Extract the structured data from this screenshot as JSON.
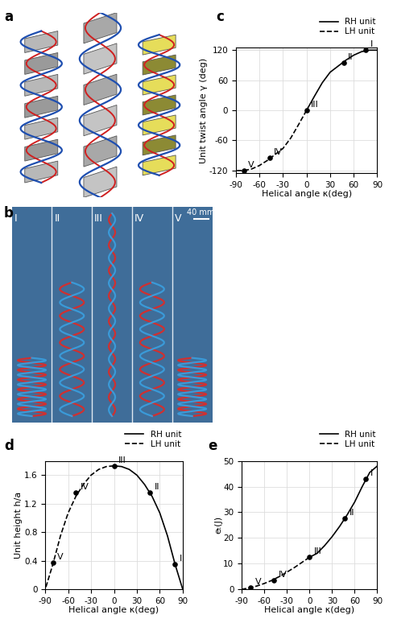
{
  "panel_labels": [
    "a",
    "b",
    "c",
    "d",
    "e"
  ],
  "photo_panel": {
    "labels": [
      "I",
      "II",
      "III",
      "IV",
      "V"
    ],
    "scale_bar": "40 mm"
  },
  "chart_data": [
    {
      "type": "line",
      "xlabel": "Helical angle κ(deg)",
      "ylabel": "Unit twist angle γ (deg)",
      "xlim": [
        -90,
        90
      ],
      "xticks": [
        -90,
        -60,
        -30,
        0,
        30,
        60,
        90
      ],
      "ylim": [
        -125,
        125
      ],
      "yticks": [
        -120,
        -60,
        0,
        60,
        120
      ],
      "grid": true,
      "legend": "upper right",
      "series": [
        {
          "name": "RH unit",
          "color": "#000000",
          "line_style": "solid",
          "x": [
            0,
            10,
            20,
            30,
            40,
            50,
            60,
            70,
            80,
            90
          ],
          "values": [
            0,
            28,
            55,
            76,
            88,
            100,
            110,
            117,
            120,
            120
          ]
        },
        {
          "name": "LH unit",
          "color": "#000000",
          "line_style": "dashed",
          "x": [
            0,
            -10,
            -20,
            -30,
            -40,
            -50,
            -60,
            -70,
            -80,
            -90
          ],
          "values": [
            0,
            -28,
            -55,
            -76,
            -88,
            -100,
            -110,
            -117,
            -120,
            -120
          ]
        }
      ],
      "points": {
        "labels": [
          "I",
          "II",
          "III",
          "IV",
          "V"
        ],
        "x": [
          75,
          47,
          0,
          -47,
          -80
        ],
        "values": [
          120,
          95,
          0,
          -95,
          -120
        ]
      }
    },
    {
      "type": "line",
      "xlabel": "Helical angle κ(deg)",
      "ylabel": "Unit height h/a",
      "xlim": [
        -90,
        90
      ],
      "xticks": [
        -90,
        -60,
        -30,
        0,
        30,
        60,
        90
      ],
      "ylim": [
        0,
        1.8
      ],
      "yticks": [
        0,
        0.4,
        0.8,
        1.2,
        1.6
      ],
      "grid": true,
      "legend": "upper right",
      "series": [
        {
          "name": "RH unit",
          "color": "#000000",
          "line_style": "solid",
          "x": [
            0,
            10,
            20,
            30,
            40,
            50,
            60,
            70,
            80,
            90
          ],
          "values": [
            1.73,
            1.72,
            1.68,
            1.6,
            1.47,
            1.3,
            1.07,
            0.75,
            0.35,
            0.0
          ]
        },
        {
          "name": "LH unit",
          "color": "#000000",
          "line_style": "dashed",
          "x": [
            0,
            -10,
            -20,
            -30,
            -40,
            -50,
            -60,
            -70,
            -80,
            -90
          ],
          "values": [
            1.73,
            1.72,
            1.68,
            1.6,
            1.47,
            1.3,
            1.07,
            0.75,
            0.35,
            0.0
          ]
        }
      ],
      "points": {
        "labels": [
          "I",
          "II",
          "III",
          "IV",
          "V"
        ],
        "x": [
          80,
          47,
          0,
          -50,
          -80
        ],
        "values": [
          0.35,
          1.35,
          1.73,
          1.35,
          0.37
        ]
      }
    },
    {
      "type": "line",
      "xlabel": "Helical angle κ(deg)",
      "ylabel": "eₜ(J)",
      "xlim": [
        -90,
        90
      ],
      "xticks": [
        -90,
        -60,
        -30,
        0,
        30,
        60,
        90
      ],
      "ylim": [
        0,
        50
      ],
      "yticks": [
        0,
        10,
        20,
        30,
        40,
        50
      ],
      "grid": true,
      "legend": "upper right",
      "series": [
        {
          "name": "RH unit",
          "color": "#000000",
          "line_style": "solid",
          "x": [
            0,
            10,
            20,
            30,
            40,
            50,
            60,
            70,
            80,
            90
          ],
          "values": [
            12.5,
            14,
            17,
            20.5,
            24.5,
            29,
            34,
            40,
            45.5,
            48
          ]
        },
        {
          "name": "LH unit",
          "color": "#000000",
          "line_style": "dashed",
          "x": [
            0,
            -10,
            -20,
            -30,
            -40,
            -50,
            -60,
            -70,
            -80,
            -90
          ],
          "values": [
            12.5,
            10.5,
            8.5,
            6.7,
            5,
            3.5,
            2.3,
            1.3,
            0.6,
            0
          ]
        }
      ],
      "points": {
        "labels": [
          "I",
          "II",
          "III",
          "IV",
          "V"
        ],
        "x": [
          75,
          47,
          0,
          -47,
          -78
        ],
        "values": [
          43,
          27.5,
          12.5,
          3.5,
          0.8
        ]
      }
    }
  ]
}
